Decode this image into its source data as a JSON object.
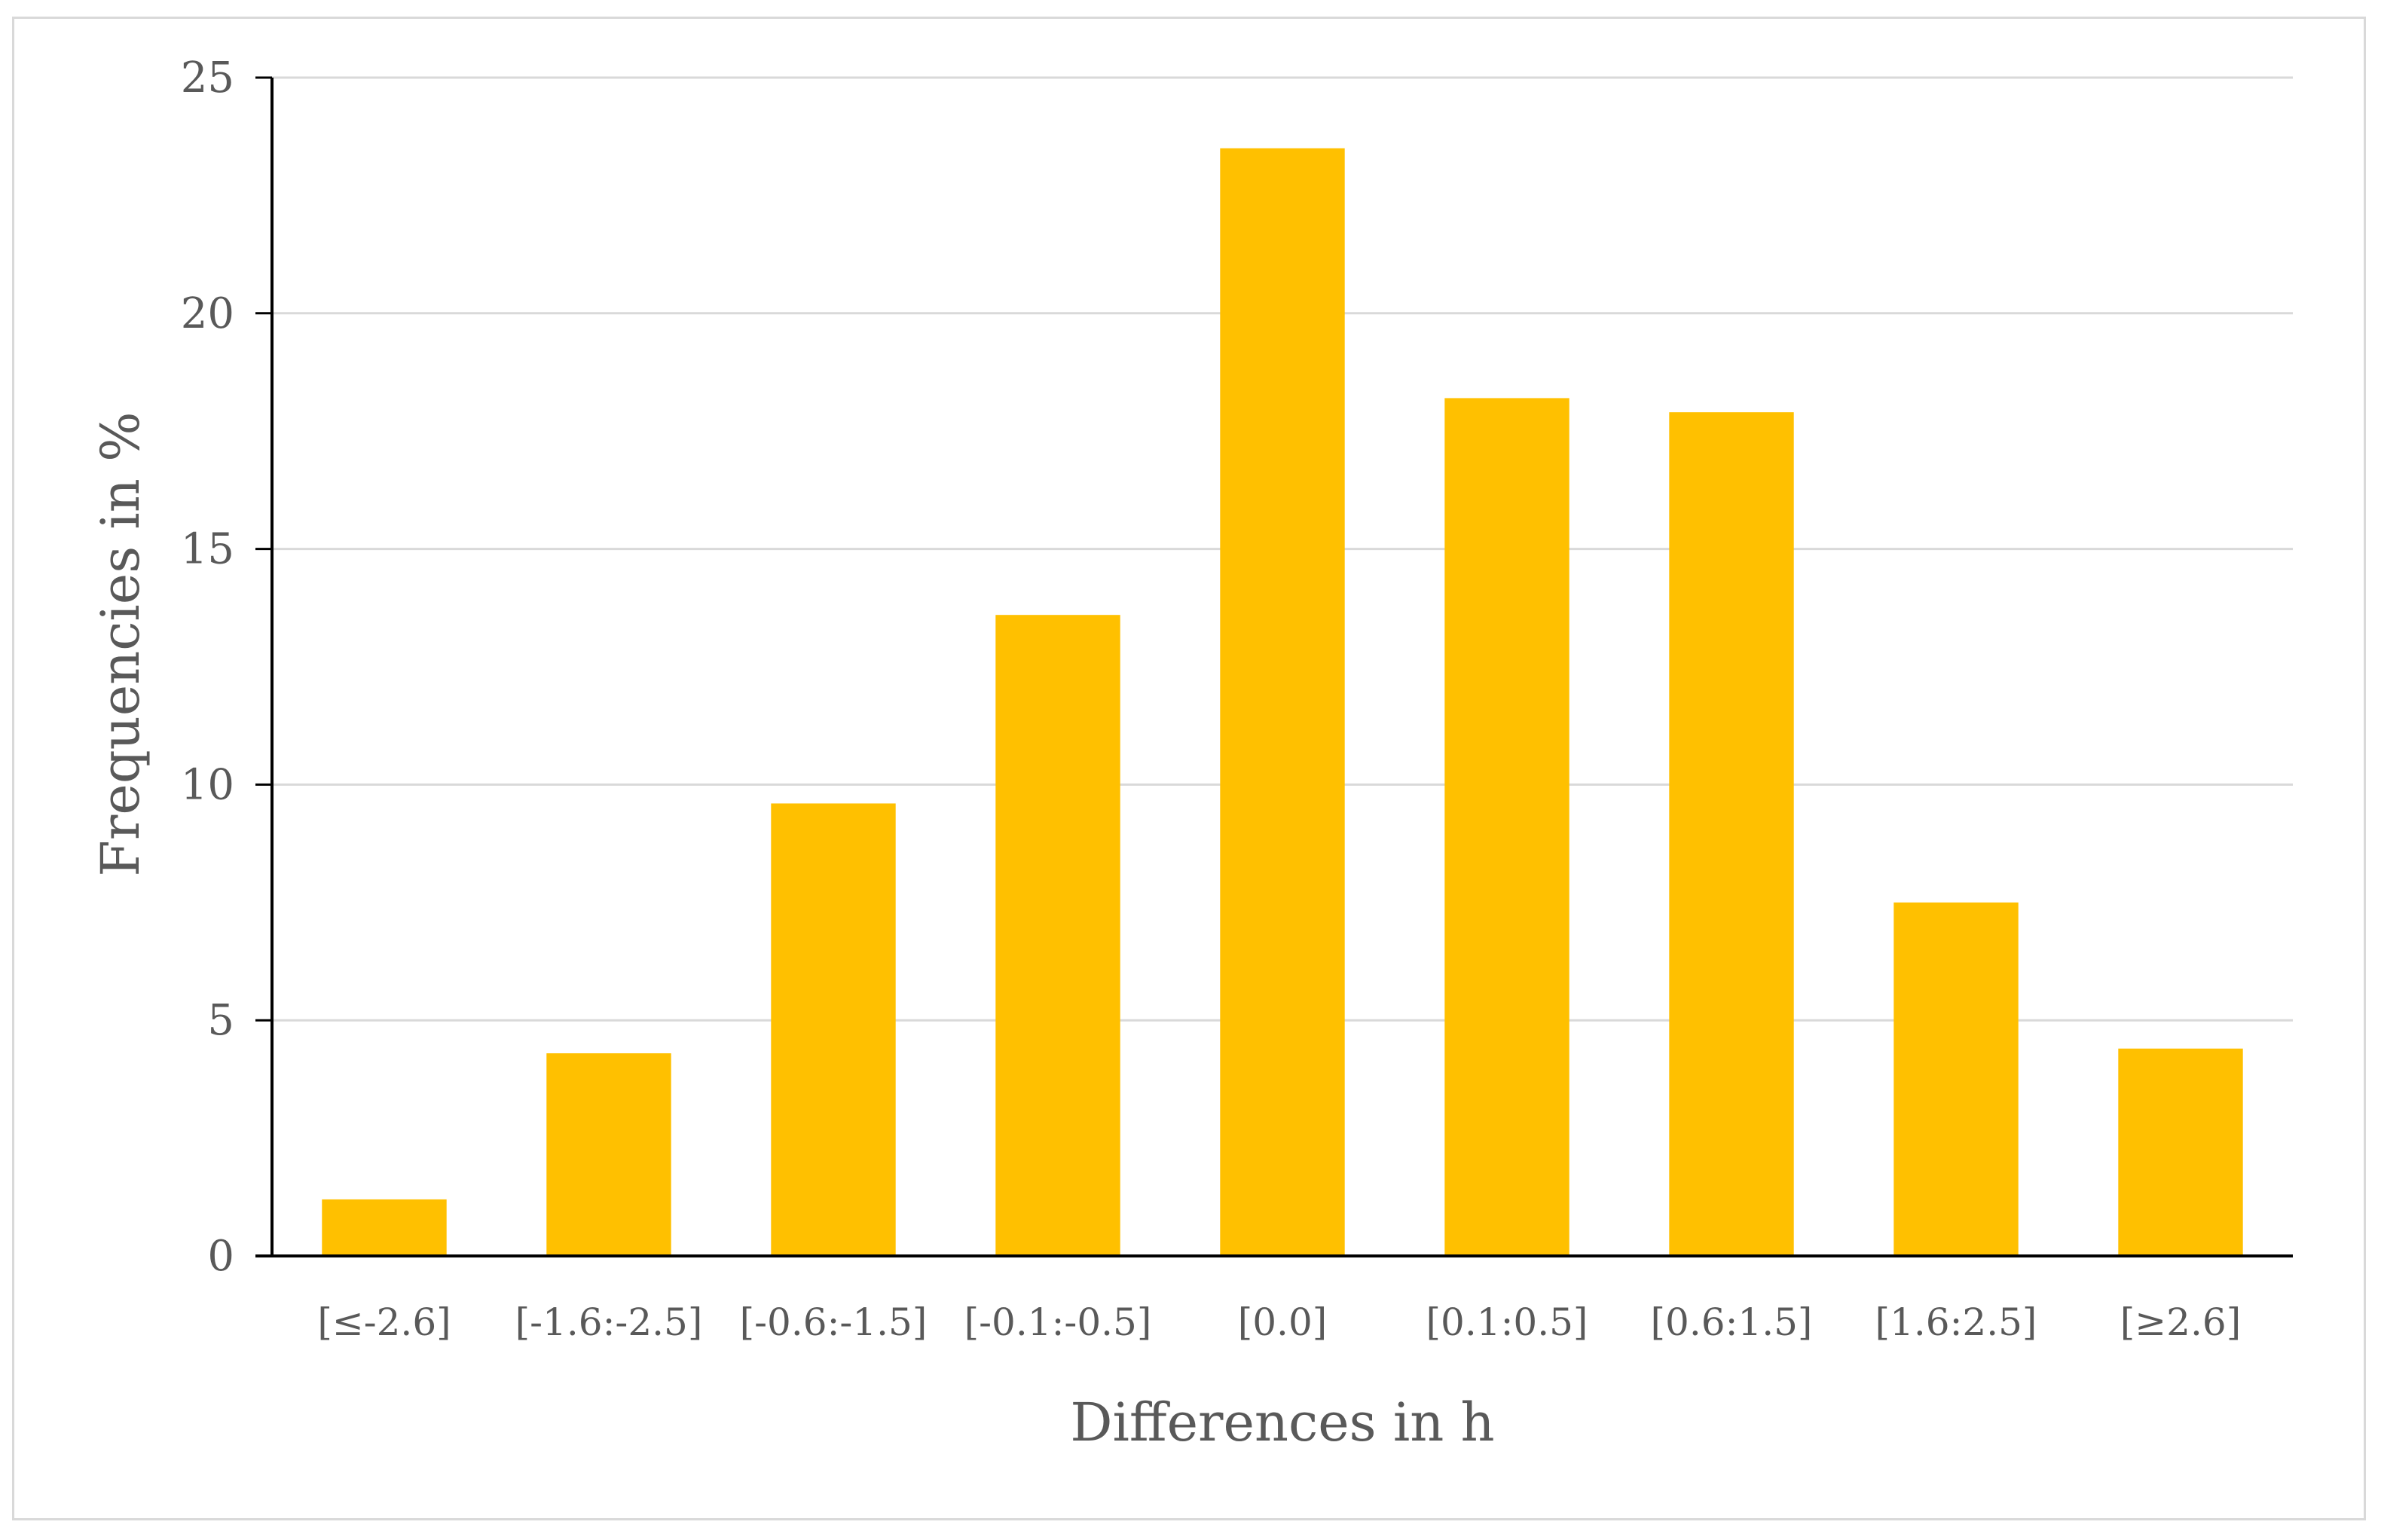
{
  "chart_data": {
    "type": "bar",
    "title": "",
    "xlabel": "Differences in h",
    "ylabel": "Frequencies in %",
    "categories": [
      "[≤-2.6]",
      "[-1.6:-2.5]",
      "[-0.6:-1.5]",
      "[-0.1:-0.5]",
      "[0.0]",
      "[0.1:0.5]",
      "[0.6:1.5]",
      "[1.6:2.5]",
      "[≥2.6]"
    ],
    "values": [
      1.2,
      4.3,
      9.6,
      13.6,
      23.5,
      18.2,
      17.9,
      7.5,
      4.4
    ],
    "ylim": [
      0,
      25
    ],
    "yticks": [
      0,
      5,
      10,
      15,
      20,
      25
    ],
    "grid": true,
    "legend": "none",
    "colors": {
      "bar": "#FFC000",
      "grid": "#d9d9d9",
      "axis": "#000000",
      "text": "#595959"
    }
  }
}
